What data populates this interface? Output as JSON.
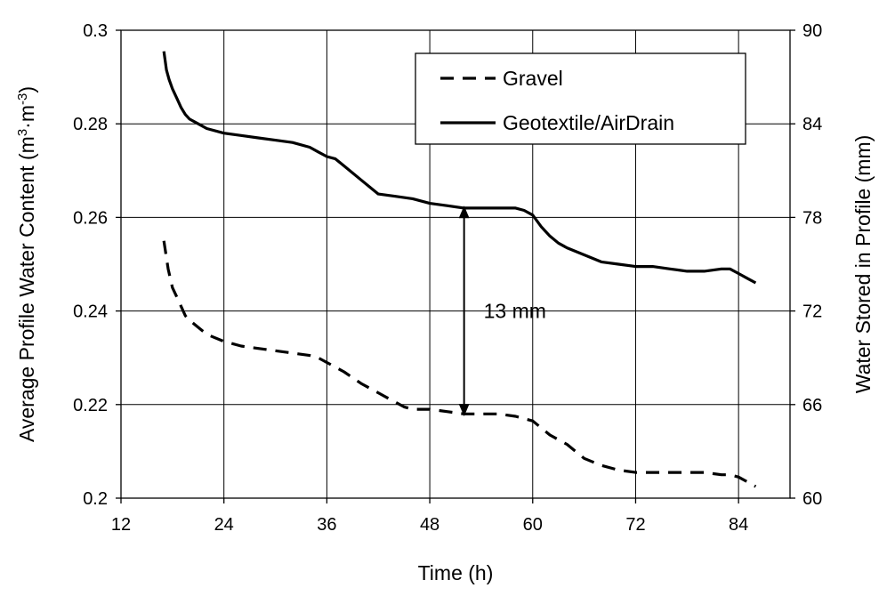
{
  "chart_data": {
    "type": "line",
    "xlabel": "Time (h)",
    "ylabel": "Average Profile Water Content (m³·m⁻³)",
    "y2label": "Water Stored in Profile (mm)",
    "xlim": [
      12,
      90
    ],
    "ylim": [
      0.2,
      0.3
    ],
    "y2lim": [
      60,
      90
    ],
    "xticks": [
      12,
      24,
      36,
      48,
      60,
      72,
      84
    ],
    "yticks": [
      0.2,
      0.22,
      0.24,
      0.26,
      0.28,
      0.3
    ],
    "ytick_labels": [
      "0.2",
      "0.22",
      "0.24",
      "0.26",
      "0.28",
      "0.3"
    ],
    "y2ticks": [
      60,
      66,
      72,
      78,
      84,
      90
    ],
    "grid": true,
    "legend_position": "top-right",
    "series": [
      {
        "name": "Gravel",
        "style": "dashed",
        "color": "#000000",
        "x": [
          17,
          17.5,
          18,
          18.5,
          19,
          19.5,
          20,
          21,
          22,
          24,
          26,
          28,
          30,
          32,
          34,
          35,
          36,
          37,
          38,
          40,
          42,
          44,
          45,
          46,
          48,
          50,
          52,
          54,
          56,
          58,
          59,
          60,
          61,
          62,
          63,
          64,
          66,
          68,
          70,
          72,
          74,
          76,
          78,
          80,
          82,
          83,
          84,
          85,
          86
        ],
        "y": [
          0.255,
          0.249,
          0.245,
          0.243,
          0.241,
          0.239,
          0.238,
          0.2365,
          0.235,
          0.2335,
          0.2325,
          0.232,
          0.2315,
          0.231,
          0.2305,
          0.23,
          0.229,
          0.228,
          0.227,
          0.2245,
          0.2225,
          0.2205,
          0.2195,
          0.219,
          0.219,
          0.2185,
          0.218,
          0.218,
          0.218,
          0.2175,
          0.217,
          0.2165,
          0.215,
          0.2135,
          0.2125,
          0.2115,
          0.2085,
          0.207,
          0.206,
          0.2055,
          0.2055,
          0.2055,
          0.2055,
          0.2055,
          0.205,
          0.205,
          0.2045,
          0.2035,
          0.2025
        ]
      },
      {
        "name": "Geotextile/AirDrain",
        "style": "solid",
        "color": "#000000",
        "x": [
          17,
          17.3,
          17.6,
          18,
          18.5,
          19,
          19.5,
          20,
          21,
          22,
          24,
          26,
          28,
          30,
          32,
          34,
          35,
          36,
          37,
          38,
          40,
          42,
          44,
          46,
          48,
          50,
          52,
          54,
          56,
          58,
          59,
          60,
          61,
          62,
          63,
          64,
          66,
          68,
          70,
          72,
          74,
          76,
          78,
          80,
          82,
          83,
          84,
          85,
          86
        ],
        "y": [
          0.2955,
          0.2915,
          0.2895,
          0.2875,
          0.2855,
          0.2835,
          0.282,
          0.281,
          0.28,
          0.279,
          0.278,
          0.2775,
          0.277,
          0.2765,
          0.276,
          0.275,
          0.274,
          0.273,
          0.2725,
          0.271,
          0.268,
          0.265,
          0.2645,
          0.264,
          0.263,
          0.2625,
          0.262,
          0.262,
          0.262,
          0.262,
          0.2615,
          0.2605,
          0.258,
          0.256,
          0.2545,
          0.2535,
          0.252,
          0.2505,
          0.25,
          0.2495,
          0.2495,
          0.249,
          0.2485,
          0.2485,
          0.249,
          0.249,
          0.248,
          0.247,
          0.246
        ]
      }
    ],
    "annotations": [
      {
        "text": "13 mm",
        "x": 52,
        "y_from": 0.2175,
        "y_to": 0.2625
      }
    ]
  }
}
